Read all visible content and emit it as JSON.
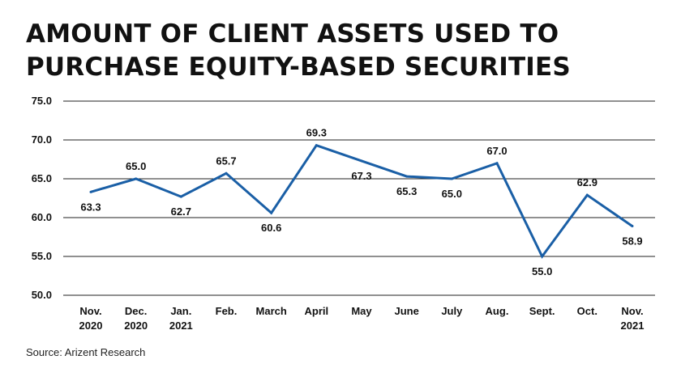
{
  "title": {
    "line1": "AMOUNT OF CLIENT ASSETS USED TO",
    "line2": "PURCHASE EQUITY-BASED SECURITIES"
  },
  "source": "Source: Arizent Research",
  "colors": {
    "line": "#1a5fa6",
    "grid": "#222222"
  },
  "chart_data": {
    "type": "line",
    "title": "AMOUNT OF CLIENT ASSETS USED TO PURCHASE EQUITY-BASED SECURITIES",
    "xlabel": "",
    "ylabel": "",
    "categories": [
      [
        "Nov.",
        "2020"
      ],
      [
        "Dec.",
        "2020"
      ],
      [
        "Jan.",
        "2021"
      ],
      [
        "Feb."
      ],
      [
        "March"
      ],
      [
        "April"
      ],
      [
        "May"
      ],
      [
        "June"
      ],
      [
        "July"
      ],
      [
        "Aug."
      ],
      [
        "Sept."
      ],
      [
        "Oct."
      ],
      [
        "Nov.",
        "2021"
      ]
    ],
    "series": [
      {
        "values": [
          63.3,
          65.0,
          62.7,
          65.7,
          60.6,
          69.3,
          67.3,
          65.3,
          65.0,
          67.0,
          55.0,
          62.9,
          58.9
        ]
      }
    ],
    "data_labels": [
      "63.3",
      "65.0",
      "62.7",
      "65.7",
      "60.6",
      "69.3",
      "67.3",
      "65.3",
      "65.0",
      "67.0",
      "55.0",
      "62.9",
      "58.9"
    ],
    "label_position": [
      "below",
      "above",
      "below",
      "above",
      "below",
      "above",
      "below",
      "below",
      "below",
      "above",
      "below",
      "above",
      "below"
    ],
    "yticks": [
      "50.0",
      "55.0",
      "60.0",
      "65.0",
      "70.0",
      "75.0"
    ],
    "ylim": [
      50,
      75
    ],
    "grid": true
  }
}
